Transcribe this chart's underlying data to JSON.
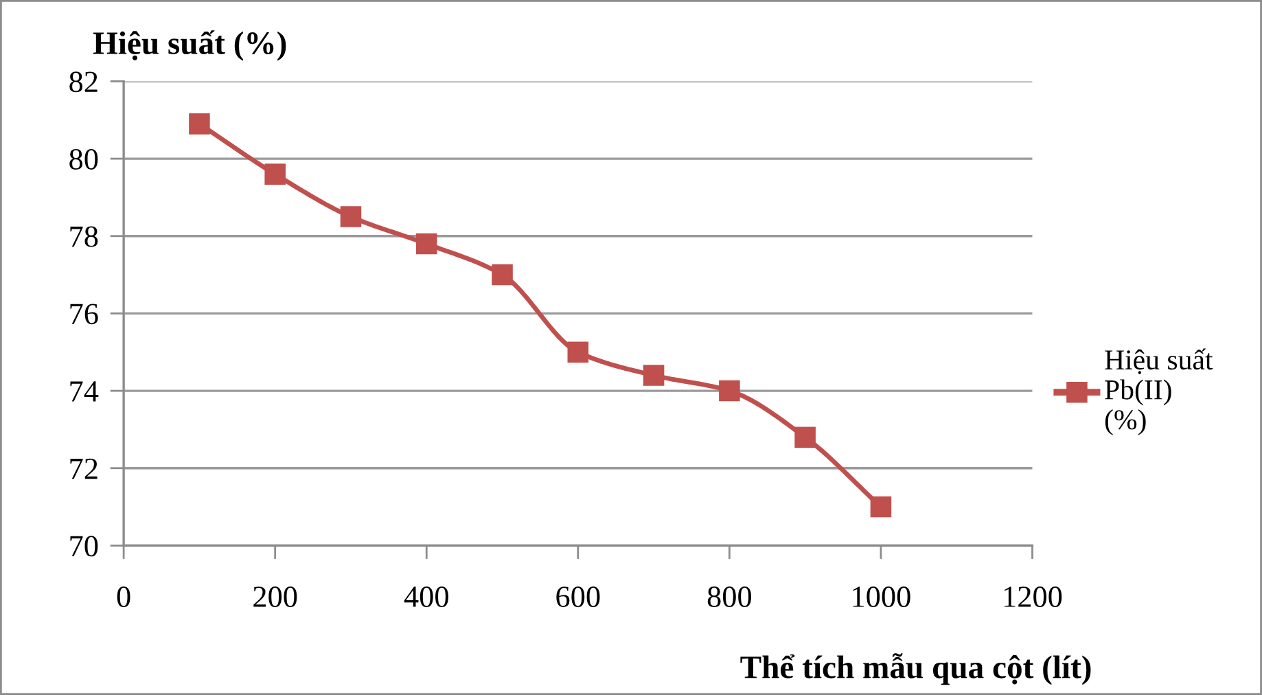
{
  "chart_data": {
    "type": "line",
    "xlabel": "Thể tích mẫu qua cột (lít)",
    "ylabel": "Hiệu suất (%)",
    "x": [
      100,
      200,
      300,
      400,
      500,
      600,
      700,
      800,
      900,
      1000
    ],
    "series": [
      {
        "name": "Hiệu suất\nPb(II)\n(%)",
        "color": "#c0504d",
        "values": [
          80.9,
          79.6,
          78.5,
          77.8,
          77.0,
          75.0,
          74.4,
          74.0,
          72.8,
          71.0
        ]
      }
    ],
    "xlim": [
      0,
      1200
    ],
    "xticks": [
      0,
      200,
      400,
      600,
      800,
      1000,
      1200
    ],
    "ylim": [
      70,
      82
    ],
    "yticks": [
      70,
      72,
      74,
      76,
      78,
      80,
      82
    ],
    "grid": "y",
    "legend": "right",
    "marker": "square",
    "line_style": "solid"
  }
}
